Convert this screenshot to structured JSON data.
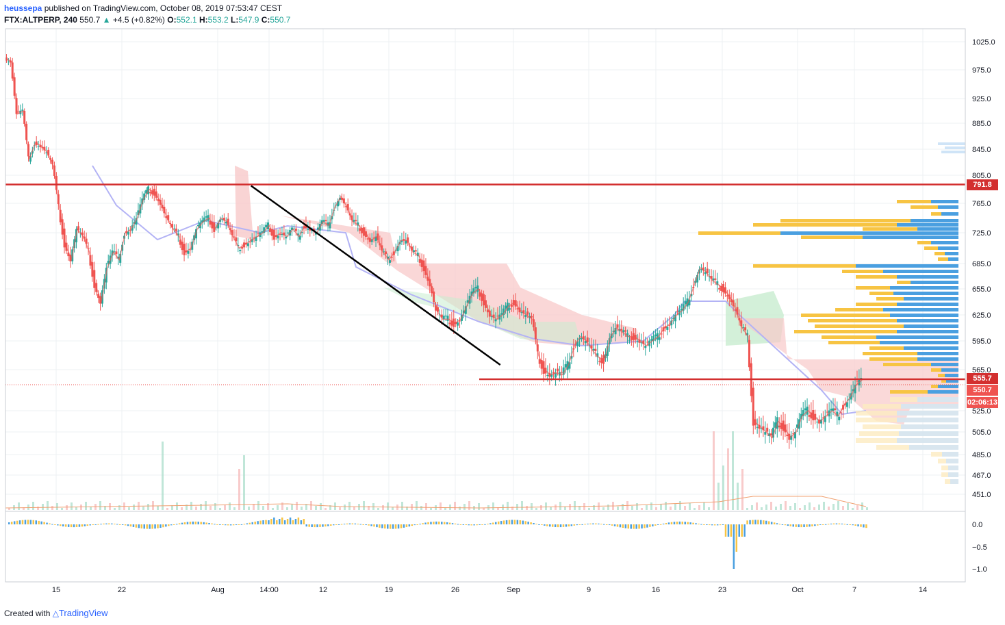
{
  "header": {
    "author": "heussepa",
    "published_text": "published on TradingView.com, October 08, 2019 07:53:47 CEST",
    "symbol": "FTX:ALTPERP, 240",
    "last": "550.7",
    "change": "+4.5 (+0.82%)",
    "open_label": "O:",
    "open": "552.1",
    "high_label": "H:",
    "high": "553.2",
    "low_label": "L:",
    "low": "547.9",
    "close_label": "C:",
    "close": "550.7"
  },
  "footer": {
    "created_with": "Created with",
    "brand": "TradingView"
  },
  "chart_data": {
    "type": "candlestick",
    "x_ticks": [
      "15",
      "22",
      "Aug",
      "14:00",
      "12",
      "19",
      "26",
      "Sep",
      "9",
      "16",
      "23",
      "Oct",
      "7",
      "14"
    ],
    "y_ticks": [
      "1025.0",
      "975.0",
      "925.0",
      "885.0",
      "845.0",
      "805.0",
      "765.0",
      "725.0",
      "685.0",
      "655.0",
      "625.0",
      "595.0",
      "565.0",
      "525.0",
      "505.0",
      "485.0",
      "467.0",
      "451.0"
    ],
    "indicator_ticks": [
      "0.0",
      "−0.5",
      "−1.0"
    ],
    "price_labels": {
      "resistance": "791.8",
      "support": "555.7",
      "last": "550.7",
      "countdown": "02:06:13"
    },
    "horizontal_levels": [
      791.8,
      555.7
    ],
    "trendline": [
      [
        20.5,
        790
      ],
      [
        41.3,
        570
      ]
    ],
    "close_series": [
      [
        0,
        995
      ],
      [
        0.5,
        990
      ],
      [
        1,
        900
      ],
      [
        1.5,
        905
      ],
      [
        2,
        830
      ],
      [
        2.5,
        855
      ],
      [
        3,
        850
      ],
      [
        3.5,
        840
      ],
      [
        4,
        820
      ],
      [
        4.5,
        760
      ],
      [
        5,
        710
      ],
      [
        5.5,
        690
      ],
      [
        6,
        730
      ],
      [
        6.5,
        720
      ],
      [
        7,
        700
      ],
      [
        7.5,
        660
      ],
      [
        8,
        640
      ],
      [
        8.5,
        680
      ],
      [
        9,
        700
      ],
      [
        9.5,
        690
      ],
      [
        10,
        725
      ],
      [
        10.5,
        730
      ],
      [
        11,
        745
      ],
      [
        11.5,
        770
      ],
      [
        12,
        785
      ],
      [
        12.5,
        780
      ],
      [
        13,
        765
      ],
      [
        13.5,
        745
      ],
      [
        14,
        730
      ],
      [
        14.5,
        720
      ],
      [
        15,
        700
      ],
      [
        15.5,
        705
      ],
      [
        16,
        730
      ],
      [
        16.5,
        740
      ],
      [
        17,
        745
      ],
      [
        17.5,
        730
      ],
      [
        18,
        745
      ],
      [
        18.5,
        740
      ],
      [
        19,
        720
      ],
      [
        19.5,
        705
      ],
      [
        20,
        710
      ],
      [
        20.5,
        715
      ],
      [
        21,
        720
      ],
      [
        21.5,
        725
      ],
      [
        22,
        735
      ],
      [
        22.5,
        720
      ],
      [
        23,
        725
      ],
      [
        23.5,
        720
      ],
      [
        24,
        730
      ],
      [
        24.5,
        720
      ],
      [
        25,
        735
      ],
      [
        25.5,
        730
      ],
      [
        26,
        725
      ],
      [
        26.5,
        740
      ],
      [
        27,
        735
      ],
      [
        27.5,
        760
      ],
      [
        28,
        775
      ],
      [
        28.5,
        760
      ],
      [
        29,
        740
      ],
      [
        29.5,
        735
      ],
      [
        30,
        725
      ],
      [
        30.5,
        715
      ],
      [
        31,
        720
      ],
      [
        31.5,
        700
      ],
      [
        32,
        690
      ],
      [
        32.5,
        700
      ],
      [
        33,
        715
      ],
      [
        33.5,
        715
      ],
      [
        34,
        700
      ],
      [
        34.5,
        695
      ],
      [
        35,
        680
      ],
      [
        35.5,
        660
      ],
      [
        36,
        630
      ],
      [
        36.5,
        620
      ],
      [
        37,
        620
      ],
      [
        37.5,
        615
      ],
      [
        38,
        620
      ],
      [
        38.5,
        635
      ],
      [
        39,
        650
      ],
      [
        39.5,
        655
      ],
      [
        40,
        640
      ],
      [
        40.5,
        625
      ],
      [
        41,
        620
      ],
      [
        41.5,
        625
      ],
      [
        42,
        635
      ],
      [
        42.5,
        640
      ],
      [
        43,
        630
      ],
      [
        43.5,
        625
      ],
      [
        44,
        620
      ],
      [
        44.5,
        580
      ],
      [
        45,
        565
      ],
      [
        45.5,
        560
      ],
      [
        46,
        562
      ],
      [
        46.5,
        560
      ],
      [
        47,
        570
      ],
      [
        47.5,
        590
      ],
      [
        48,
        600
      ],
      [
        48.5,
        595
      ],
      [
        49,
        585
      ],
      [
        49.5,
        578
      ],
      [
        50,
        575
      ],
      [
        50.5,
        600
      ],
      [
        51,
        610
      ],
      [
        51.5,
        605
      ],
      [
        52,
        600
      ],
      [
        52.5,
        600
      ],
      [
        53,
        595
      ],
      [
        53.5,
        590
      ],
      [
        54,
        595
      ],
      [
        54.5,
        600
      ],
      [
        55,
        610
      ],
      [
        55.5,
        615
      ],
      [
        56,
        625
      ],
      [
        56.5,
        630
      ],
      [
        57,
        640
      ],
      [
        57.5,
        660
      ],
      [
        58,
        680
      ],
      [
        58.5,
        675
      ],
      [
        59,
        665
      ],
      [
        59.5,
        660
      ],
      [
        60,
        655
      ],
      [
        60.5,
        645
      ],
      [
        61,
        630
      ],
      [
        61.5,
        610
      ],
      [
        62,
        600
      ],
      [
        62.5,
        515
      ],
      [
        63,
        510
      ],
      [
        63.5,
        505
      ],
      [
        64,
        500
      ],
      [
        64.5,
        515
      ],
      [
        65,
        510
      ],
      [
        65.5,
        500
      ],
      [
        66,
        505
      ],
      [
        66.5,
        520
      ],
      [
        67,
        525
      ],
      [
        67.5,
        520
      ],
      [
        68,
        515
      ],
      [
        68.5,
        520
      ],
      [
        69,
        525
      ],
      [
        69.5,
        520
      ],
      [
        70,
        530
      ],
      [
        70.5,
        538
      ],
      [
        71,
        550
      ],
      [
        71.5,
        555
      ]
    ],
    "volume_profile_note": "visible range volume profile on right"
  },
  "colors": {
    "up": "#26a69a",
    "down": "#ef5350",
    "level": "#d32f2f",
    "trend": "#000000",
    "cloud_bear": "#f8c9c9",
    "cloud_bull": "#c8ecd0",
    "base": "#b3b3f5",
    "vp_up": "#f7c443",
    "vp_down": "#4a9fe0"
  }
}
